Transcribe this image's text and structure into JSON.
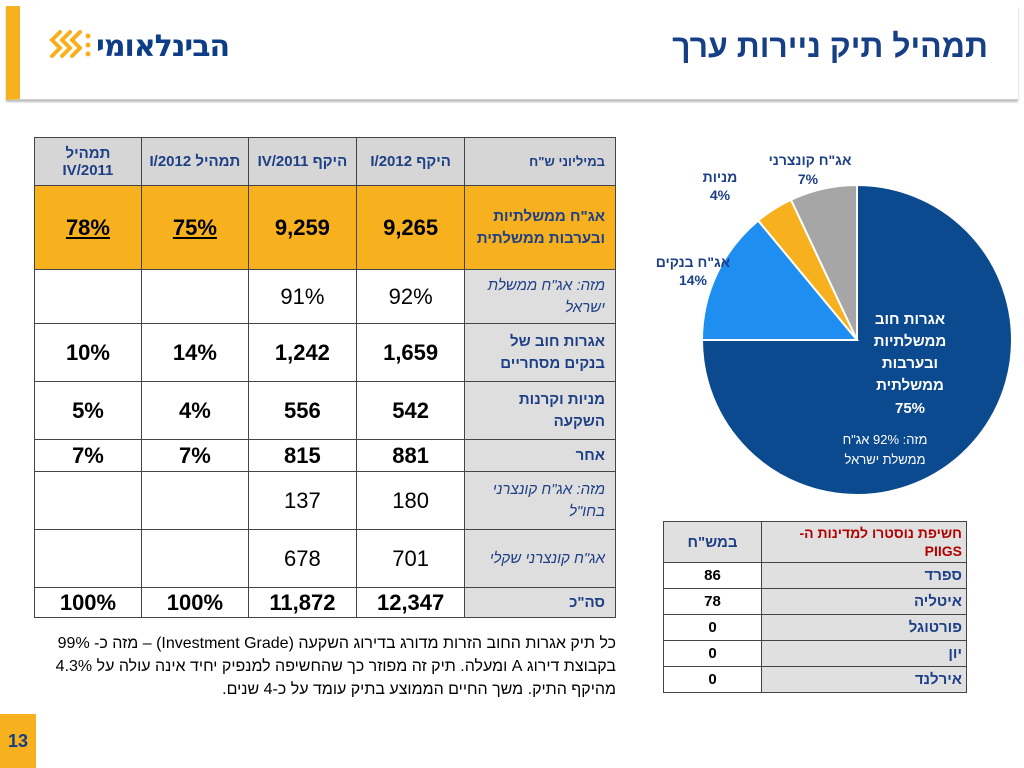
{
  "header": {
    "logo_text": "הבינלאומי",
    "title": "תמהיל תיק ניירות ערך"
  },
  "colors": {
    "accent": "#f7b01e",
    "navy": "#0c3d86",
    "gov": "#0b4a8f",
    "banks": "#1e8ef0",
    "stocks": "#f7b01e",
    "corporate": "#a6a6a6"
  },
  "table": {
    "headers": [
      "במיליוני ש\"ח",
      "היקף I/2012",
      "היקף IV/2011",
      "תמהיל I/2012",
      "תמהיל IV/2011"
    ],
    "rows": [
      {
        "label": "אג\"ח ממשלתיות ובערבות ממשלתית",
        "c1": "9,265",
        "c2": "9,259",
        "c3": "75%",
        "c4": "78%"
      },
      {
        "label": "מזה: אג\"ח ממשלת ישראל",
        "c1": "92%",
        "c2": "91%",
        "c3": "",
        "c4": ""
      },
      {
        "label": "אגרות חוב של בנקים מסחריים",
        "c1": "1,659",
        "c2": "1,242",
        "c3": "14%",
        "c4": "10%"
      },
      {
        "label": "מניות וקרנות השקעה",
        "c1": "542",
        "c2": "556",
        "c3": "4%",
        "c4": "5%"
      },
      {
        "label": "אחר",
        "c1": "881",
        "c2": "815",
        "c3": "7%",
        "c4": "7%"
      },
      {
        "label": "מזה:  אג\"ח קונצרני בחו\"ל",
        "c1": "180",
        "c2": "137",
        "c3": "",
        "c4": ""
      },
      {
        "label": "אג\"ח קונצרני שקלי",
        "c1": "701",
        "c2": "678",
        "c3": "",
        "c4": ""
      },
      {
        "label": "סה\"כ",
        "c1": "12,347",
        "c2": "11,872",
        "c3": "100%",
        "c4": "100%"
      }
    ]
  },
  "note": "כל תיק אגרות החוב הזרות מדורג בדירוג השקעה (Investment Grade) – מזה כ- 99% בקבוצת דירוג A ומעלה. תיק זה מפוזר כך שהחשיפה למנפיק יחיד אינה עולה על 4.3% מהיקף התיק. משך החיים הממוצע בתיק עומד על כ-4 שנים.",
  "chart_data": {
    "type": "pie",
    "slices": [
      {
        "label": "אגרות חוב ממשלתיות ובערבות ממשלתית",
        "value": 75
      },
      {
        "label": "אג\"ח בנקים",
        "value": 14
      },
      {
        "label": "מניות",
        "value": 4
      },
      {
        "label": "אג\"ח קונצרני",
        "value": 7
      }
    ],
    "labels": {
      "gov_l1": "אגרות חוב",
      "gov_l2": "ממשלתיות",
      "gov_l3": "ובערבות",
      "gov_l4": "ממשלתית",
      "gov_pct": "75%",
      "gov_sub1": "מזה: 92% אג\"ח",
      "gov_sub2": "ממשלת ישראל",
      "banks": "אג\"ח בנקים",
      "banks_pct": "14%",
      "stocks": "מניות",
      "stocks_pct": "4%",
      "corp": "אג\"ח קונצרני",
      "corp_pct": "7%"
    }
  },
  "piigs": {
    "header_label": "חשיפת נוסטרו למדינות ה- PIIGS",
    "header_unit": "במש\"ח",
    "rows": [
      {
        "country": "ספרד",
        "value": "86"
      },
      {
        "country": "איטליה",
        "value": "78"
      },
      {
        "country": "פורטוגל",
        "value": "0"
      },
      {
        "country": "יון",
        "value": "0"
      },
      {
        "country": "אירלנד",
        "value": "0"
      }
    ]
  },
  "page_number": "13"
}
